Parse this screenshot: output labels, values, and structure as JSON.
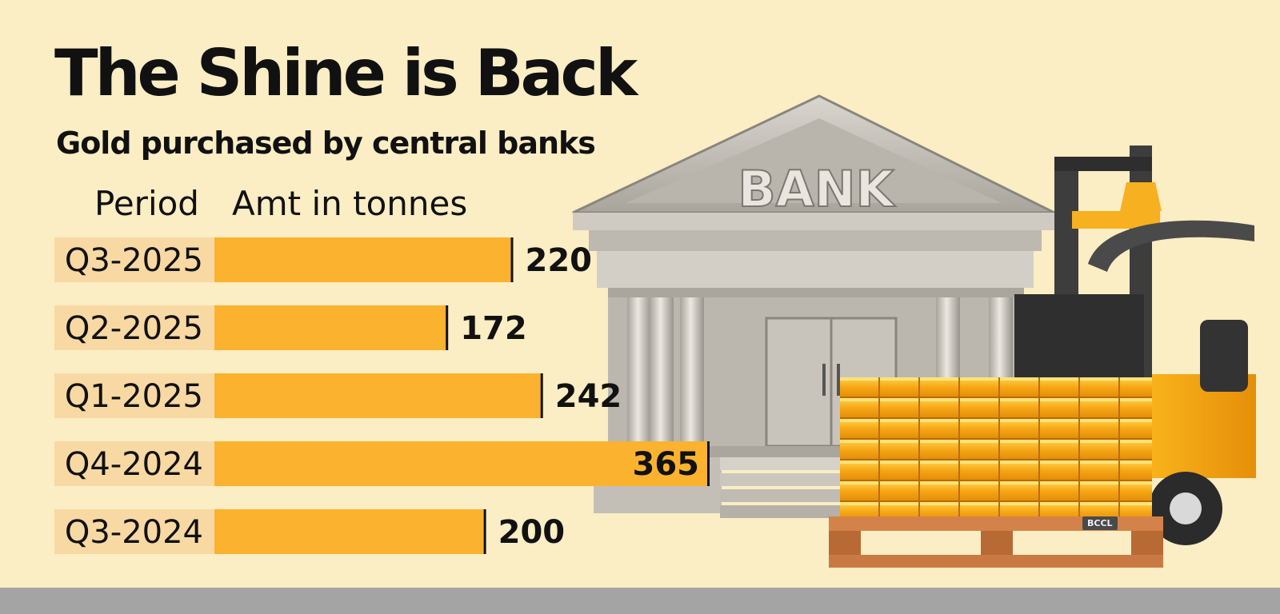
{
  "title": "The Shine is Back",
  "subtitle": "Gold purchased by central banks",
  "column_headers": {
    "period": "Period",
    "amount": "Amt in tonnes"
  },
  "credit": "BCCL",
  "illustration": {
    "sign_text": "BANK"
  },
  "colors": {
    "background": "#fbedc4",
    "bar": "#fbb22e",
    "label_band": "#f8d9a4",
    "text": "#111111"
  },
  "chart_data": {
    "type": "bar",
    "orientation": "horizontal",
    "title": "The Shine is Back",
    "subtitle": "Gold purchased by central banks",
    "xlabel": "Amt in tonnes",
    "ylabel": "Period",
    "categories": [
      "Q3-2025",
      "Q2-2025",
      "Q1-2025",
      "Q4-2024",
      "Q3-2024"
    ],
    "values": [
      220,
      172,
      242,
      365,
      200
    ],
    "xlim": [
      0,
      365
    ],
    "grid": false,
    "legend": "none"
  }
}
